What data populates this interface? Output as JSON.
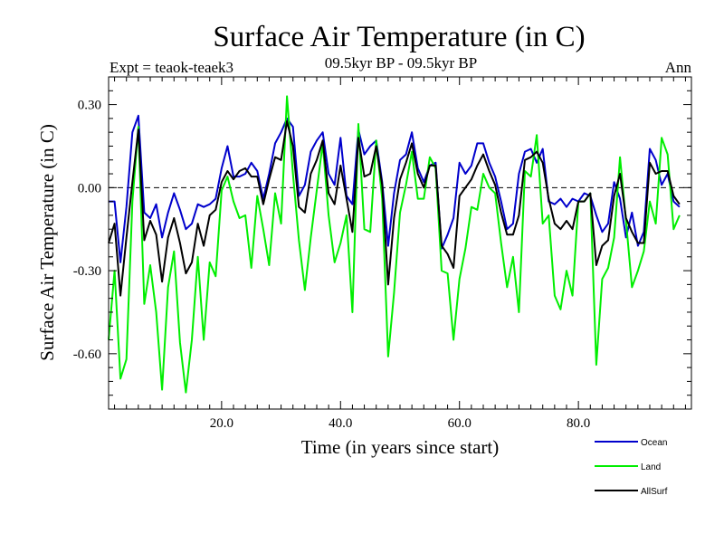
{
  "chart_data": {
    "type": "line",
    "title": "Surface Air Temperature (in C)",
    "subtitle": "09.5kyr BP - 09.5kyr BP",
    "experiment": "Expt = teaok-teaek3",
    "season": "Ann",
    "xlabel": "Time (in years since start)",
    "ylabel": "Surface Air Temperature (in C)",
    "xlim": [
      1,
      99
    ],
    "ylim": [
      -0.8,
      0.4
    ],
    "xticks": [
      20,
      40,
      60,
      80
    ],
    "xtick_labels": [
      "20.0",
      "40.0",
      "60.0",
      "80.0"
    ],
    "yticks": [
      0.3,
      0.0,
      -0.3,
      -0.6
    ],
    "ytick_labels": [
      "0.30",
      "0.00",
      "-0.30",
      "-0.60"
    ],
    "reference_line": 0.0,
    "x_start": 1,
    "x_step": 1,
    "series": [
      {
        "name": "Ocean",
        "color": "#0000cc",
        "values": [
          -0.05,
          -0.05,
          -0.27,
          -0.07,
          0.2,
          0.26,
          -0.09,
          -0.11,
          -0.06,
          -0.18,
          -0.09,
          -0.02,
          -0.08,
          -0.15,
          -0.13,
          -0.06,
          -0.07,
          -0.06,
          -0.04,
          0.07,
          0.15,
          0.04,
          0.04,
          0.05,
          0.09,
          0.06,
          -0.04,
          0.05,
          0.16,
          0.2,
          0.25,
          0.22,
          -0.03,
          0.01,
          0.13,
          0.17,
          0.2,
          0.05,
          0.01,
          0.18,
          -0.03,
          -0.06,
          0.21,
          0.12,
          0.15,
          0.17,
          0.02,
          -0.21,
          -0.02,
          0.1,
          0.12,
          0.2,
          0.07,
          0.02,
          0.08,
          0.09,
          -0.22,
          -0.17,
          -0.11,
          0.09,
          0.05,
          0.08,
          0.16,
          0.16,
          0.09,
          0.04,
          -0.05,
          -0.15,
          -0.13,
          0.05,
          0.13,
          0.14,
          0.09,
          0.14,
          -0.05,
          -0.06,
          -0.04,
          -0.07,
          -0.04,
          -0.05,
          -0.02,
          -0.03,
          -0.1,
          -0.16,
          -0.13,
          0.02,
          -0.04,
          -0.18,
          -0.09,
          -0.21,
          -0.16,
          0.14,
          0.1,
          0.01,
          0.05,
          -0.05,
          -0.07
        ]
      },
      {
        "name": "Land",
        "color": "#00ee00",
        "values": [
          -0.55,
          -0.3,
          -0.69,
          -0.62,
          -0.05,
          0.22,
          -0.42,
          -0.28,
          -0.45,
          -0.73,
          -0.36,
          -0.23,
          -0.56,
          -0.74,
          -0.55,
          -0.25,
          -0.55,
          -0.27,
          -0.32,
          -0.01,
          0.04,
          -0.05,
          -0.11,
          -0.1,
          -0.29,
          -0.03,
          -0.15,
          -0.28,
          -0.02,
          -0.13,
          0.33,
          0.05,
          -0.19,
          -0.37,
          -0.18,
          -0.01,
          0.16,
          -0.1,
          -0.27,
          -0.2,
          -0.1,
          -0.45,
          0.23,
          -0.15,
          -0.16,
          0.17,
          -0.04,
          -0.61,
          -0.38,
          -0.09,
          0.01,
          0.13,
          -0.04,
          -0.04,
          0.11,
          0.07,
          -0.3,
          -0.31,
          -0.55,
          -0.33,
          -0.22,
          -0.07,
          -0.08,
          0.05,
          0.0,
          -0.02,
          -0.2,
          -0.36,
          -0.25,
          -0.45,
          0.06,
          0.04,
          0.19,
          -0.13,
          -0.1,
          -0.39,
          -0.44,
          -0.3,
          -0.39,
          -0.05,
          -0.05,
          -0.02,
          -0.64,
          -0.33,
          -0.29,
          -0.18,
          0.11,
          -0.12,
          -0.36,
          -0.3,
          -0.23,
          -0.05,
          -0.13,
          0.18,
          0.12,
          -0.15,
          -0.1
        ]
      },
      {
        "name": "AllSurf",
        "color": "#000000",
        "values": [
          -0.2,
          -0.13,
          -0.39,
          -0.18,
          0.02,
          0.21,
          -0.19,
          -0.12,
          -0.17,
          -0.34,
          -0.18,
          -0.11,
          -0.2,
          -0.31,
          -0.27,
          -0.13,
          -0.21,
          -0.1,
          -0.08,
          0.02,
          0.06,
          0.03,
          0.06,
          0.07,
          0.04,
          0.04,
          -0.06,
          0.03,
          0.11,
          0.1,
          0.24,
          0.15,
          -0.07,
          -0.09,
          0.05,
          0.1,
          0.17,
          -0.02,
          -0.06,
          0.08,
          -0.04,
          -0.16,
          0.18,
          0.04,
          0.05,
          0.15,
          0.01,
          -0.35,
          -0.11,
          0.03,
          0.09,
          0.16,
          0.05,
          0.0,
          0.08,
          0.08,
          -0.21,
          -0.24,
          -0.29,
          -0.03,
          0.0,
          0.03,
          0.08,
          0.12,
          0.06,
          0.01,
          -0.09,
          -0.17,
          -0.17,
          -0.1,
          0.1,
          0.11,
          0.13,
          0.09,
          -0.04,
          -0.13,
          -0.15,
          -0.12,
          -0.15,
          -0.05,
          -0.05,
          -0.02,
          -0.28,
          -0.21,
          -0.19,
          -0.03,
          0.05,
          -0.11,
          -0.16,
          -0.2,
          -0.2,
          0.09,
          0.05,
          0.06,
          0.06,
          -0.03,
          -0.06
        ]
      }
    ]
  }
}
